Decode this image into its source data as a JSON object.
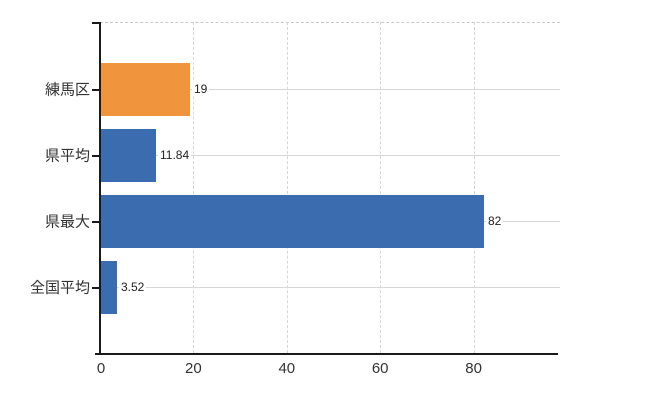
{
  "chart_data": {
    "type": "bar",
    "orientation": "horizontal",
    "title": "",
    "xlabel": "",
    "ylabel": "",
    "categories": [
      "練馬区",
      "県平均",
      "県最大",
      "全国平均"
    ],
    "values": [
      19,
      11.84,
      82,
      3.52
    ],
    "value_labels": [
      "19",
      "11.84",
      "82",
      "3.52"
    ],
    "bar_colors": [
      "#f0953e",
      "#3c6cb0",
      "#3c6cb0",
      "#3c6cb0"
    ],
    "x_ticks": [
      0,
      20,
      40,
      60,
      80
    ],
    "x_tick_labels": [
      "0",
      "20",
      "40",
      "60",
      "80"
    ],
    "xlim": [
      0,
      98.5
    ],
    "grid": true,
    "grid_horizontal_per_category": true,
    "legend": false
  },
  "colors": {
    "highlight_bar": "#f0953e",
    "default_bar": "#3c6cb0",
    "gridline": "#d7d7d7",
    "axis": "#1a1a1a",
    "text": "#333333",
    "background": "#ffffff"
  }
}
